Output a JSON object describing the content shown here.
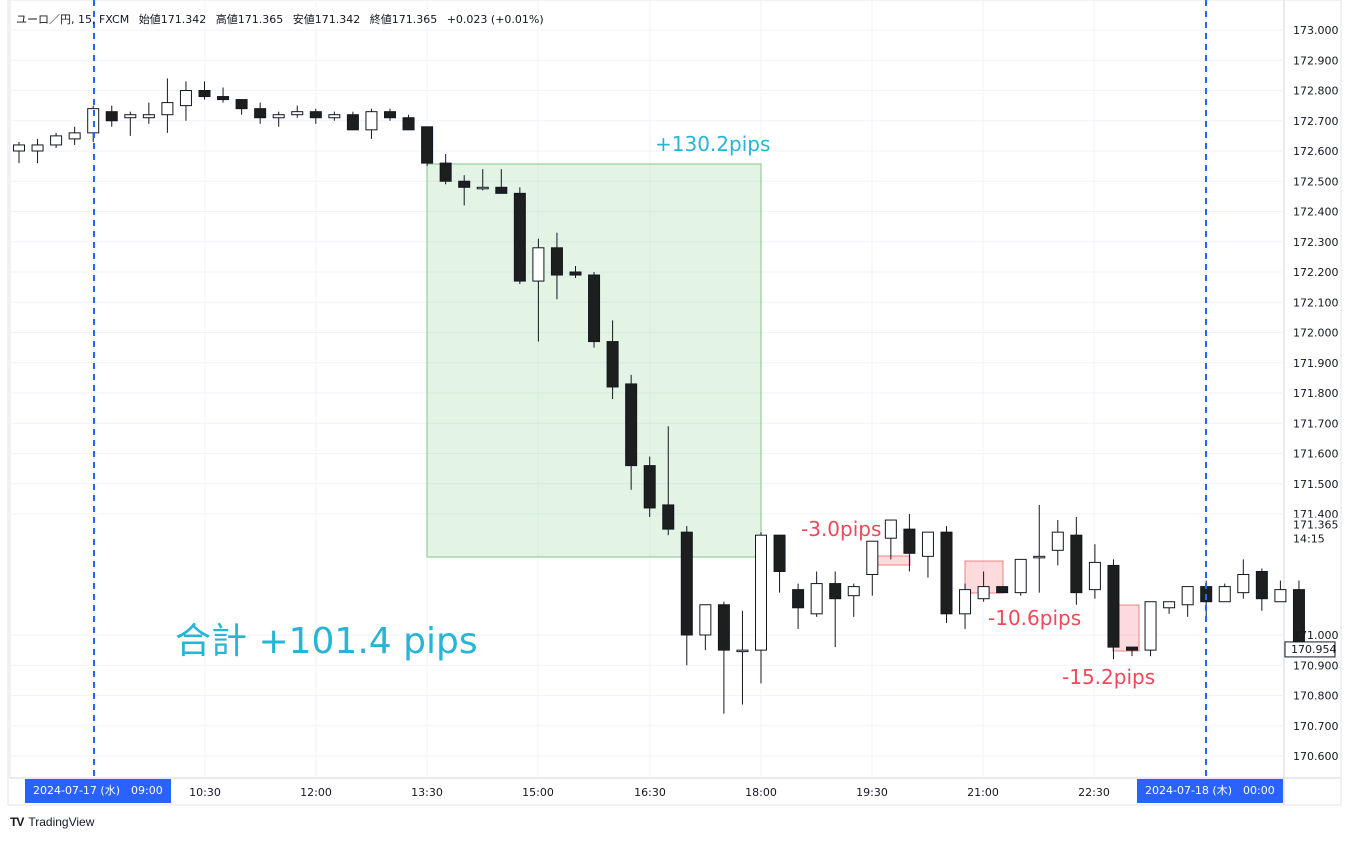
{
  "legend": {
    "symbol": "ユーロ／円, 15, FXCM",
    "open": "始値171.342",
    "high": "高値171.365",
    "low": "安値171.342",
    "close": "終値171.365",
    "change": "+0.023 (+0.01%)"
  },
  "annotations": {
    "gain": "+130.2pips",
    "loss1": "-3.0pips",
    "loss2": "-10.6pips",
    "loss3": "-15.2pips",
    "total": "合計 +101.4 pips"
  },
  "markers": {
    "start": "2024-07-17 (水)　09:00",
    "end": "2024-07-18 (木)　00:00"
  },
  "price_tag": {
    "price": "171.365",
    "countdown": "14:15",
    "last": "170.954"
  },
  "brand": {
    "logo": "TV",
    "name": "TradingView"
  },
  "colors": {
    "gain": "#26b5d6",
    "loss": "#f04858",
    "marker": "#2962ff"
  },
  "chart_data": {
    "type": "candlestick",
    "ylim": [
      170.5,
      173.05
    ],
    "yticks": [
      "173.000",
      "172.900",
      "172.800",
      "172.700",
      "172.600",
      "172.500",
      "172.400",
      "172.300",
      "172.200",
      "172.100",
      "172.000",
      "171.900",
      "171.800",
      "171.700",
      "171.600",
      "171.500",
      "171.400",
      "171.000",
      "170.900",
      "170.800",
      "170.700",
      "170.600"
    ],
    "xticks": [
      "10:30",
      "12:00",
      "13:30",
      "15:00",
      "16:30",
      "18:00",
      "19:30",
      "21:00",
      "22:30"
    ],
    "candles": [
      [
        172.6,
        172.63,
        172.56,
        172.62
      ],
      [
        172.6,
        172.64,
        172.56,
        172.62
      ],
      [
        172.62,
        172.66,
        172.61,
        172.65
      ],
      [
        172.64,
        172.68,
        172.62,
        172.66
      ],
      [
        172.66,
        172.75,
        172.63,
        172.74
      ],
      [
        172.73,
        172.75,
        172.68,
        172.7
      ],
      [
        172.71,
        172.73,
        172.65,
        172.72
      ],
      [
        172.71,
        172.76,
        172.69,
        172.72
      ],
      [
        172.72,
        172.84,
        172.66,
        172.76
      ],
      [
        172.75,
        172.83,
        172.7,
        172.8
      ],
      [
        172.8,
        172.83,
        172.77,
        172.78
      ],
      [
        172.78,
        172.81,
        172.76,
        172.77
      ],
      [
        172.77,
        172.77,
        172.72,
        172.74
      ],
      [
        172.74,
        172.76,
        172.69,
        172.71
      ],
      [
        172.71,
        172.73,
        172.68,
        172.72
      ],
      [
        172.72,
        172.75,
        172.71,
        172.73
      ],
      [
        172.73,
        172.74,
        172.69,
        172.71
      ],
      [
        172.71,
        172.73,
        172.7,
        172.72
      ],
      [
        172.72,
        172.73,
        172.67,
        172.67
      ],
      [
        172.67,
        172.74,
        172.64,
        172.73
      ],
      [
        172.73,
        172.74,
        172.7,
        172.71
      ],
      [
        172.71,
        172.72,
        172.67,
        172.67
      ],
      [
        172.68,
        172.68,
        172.55,
        172.56
      ],
      [
        172.56,
        172.59,
        172.49,
        172.5
      ],
      [
        172.5,
        172.52,
        172.42,
        172.48
      ],
      [
        172.48,
        172.54,
        172.47,
        172.48
      ],
      [
        172.48,
        172.54,
        172.47,
        172.46
      ],
      [
        172.46,
        172.48,
        172.16,
        172.17
      ],
      [
        172.17,
        172.31,
        171.97,
        172.28
      ],
      [
        172.28,
        172.33,
        172.11,
        172.19
      ],
      [
        172.2,
        172.22,
        172.18,
        172.19
      ],
      [
        172.19,
        172.2,
        171.95,
        171.97
      ],
      [
        171.97,
        172.04,
        171.78,
        171.82
      ],
      [
        171.83,
        171.86,
        171.48,
        171.56
      ],
      [
        171.56,
        171.59,
        171.39,
        171.42
      ],
      [
        171.43,
        171.69,
        171.33,
        171.35
      ],
      [
        171.34,
        171.36,
        170.9,
        171.0
      ],
      [
        171.0,
        171.1,
        170.95,
        171.1
      ],
      [
        171.1,
        171.11,
        170.74,
        170.95
      ],
      [
        170.95,
        171.08,
        170.77,
        170.95
      ],
      [
        170.95,
        171.34,
        170.84,
        171.33
      ],
      [
        171.33,
        171.33,
        171.14,
        171.21
      ],
      [
        171.15,
        171.17,
        171.02,
        171.09
      ],
      [
        171.07,
        171.21,
        171.06,
        171.17
      ],
      [
        171.17,
        171.21,
        170.96,
        171.12
      ],
      [
        171.13,
        171.17,
        171.06,
        171.16
      ],
      [
        171.2,
        171.31,
        171.13,
        171.31
      ],
      [
        171.32,
        171.37,
        171.25,
        171.38
      ],
      [
        171.35,
        171.4,
        171.21,
        171.27
      ],
      [
        171.26,
        171.34,
        171.19,
        171.34
      ],
      [
        171.34,
        171.36,
        171.04,
        171.07
      ],
      [
        171.07,
        171.17,
        171.02,
        171.15
      ],
      [
        171.12,
        171.21,
        171.11,
        171.16
      ],
      [
        171.16,
        171.16,
        171.14,
        171.14
      ],
      [
        171.14,
        171.24,
        171.13,
        171.25
      ],
      [
        171.26,
        171.43,
        171.14,
        171.26
      ],
      [
        171.28,
        171.38,
        171.23,
        171.34
      ],
      [
        171.33,
        171.39,
        171.1,
        171.14
      ],
      [
        171.15,
        171.3,
        171.12,
        171.24
      ],
      [
        171.23,
        171.25,
        170.92,
        170.96
      ],
      [
        170.96,
        170.96,
        170.93,
        170.95
      ],
      [
        170.95,
        171.11,
        170.93,
        171.11
      ],
      [
        171.09,
        171.1,
        171.07,
        171.11
      ],
      [
        171.1,
        171.16,
        171.06,
        171.16
      ],
      [
        171.16,
        171.18,
        171.05,
        171.11
      ],
      [
        171.11,
        171.17,
        171.11,
        171.16
      ],
      [
        171.14,
        171.25,
        171.12,
        171.2
      ],
      [
        171.21,
        171.22,
        171.08,
        171.12
      ],
      [
        171.11,
        171.18,
        171.12,
        171.15
      ],
      [
        171.15,
        171.18,
        170.94,
        170.95
      ]
    ]
  }
}
